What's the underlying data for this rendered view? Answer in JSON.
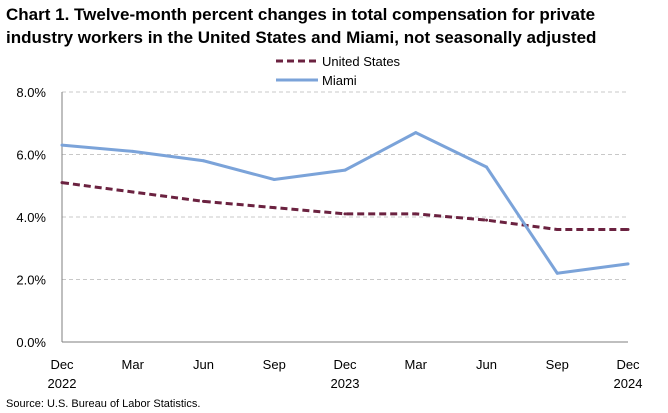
{
  "chart_data": {
    "type": "line",
    "title": "Chart 1. Twelve-month percent changes in total compensation for private industry workers in the United States and Miami, not seasonally adjusted",
    "source": "Source: U.S. Bureau of Labor Statistics.",
    "categories": [
      "Dec 2022",
      "Mar",
      "Jun",
      "Sep",
      "Dec 2023",
      "Mar",
      "Jun",
      "Sep",
      "Dec 2024"
    ],
    "tick_labels": [
      {
        "line1": "Dec",
        "line2": "2022"
      },
      {
        "line1": "Mar",
        "line2": ""
      },
      {
        "line1": "Jun",
        "line2": ""
      },
      {
        "line1": "Sep",
        "line2": ""
      },
      {
        "line1": "Dec",
        "line2": "2023"
      },
      {
        "line1": "Mar",
        "line2": ""
      },
      {
        "line1": "Jun",
        "line2": ""
      },
      {
        "line1": "Sep",
        "line2": ""
      },
      {
        "line1": "Dec",
        "line2": "2024"
      }
    ],
    "series": [
      {
        "name": "United States",
        "color": "#6b2240",
        "style": "dashed",
        "values": [
          5.1,
          4.8,
          4.5,
          4.3,
          4.1,
          4.1,
          3.9,
          3.6,
          3.6
        ]
      },
      {
        "name": "Miami",
        "color": "#7ba3d9",
        "style": "solid",
        "values": [
          6.3,
          6.1,
          5.8,
          5.2,
          5.5,
          6.7,
          5.6,
          2.2,
          2.5
        ]
      }
    ],
    "ylim": [
      0,
      8
    ],
    "yticks": [
      0,
      2,
      4,
      6,
      8
    ],
    "ytick_labels": [
      "0.0%",
      "2.0%",
      "4.0%",
      "6.0%",
      "8.0%"
    ],
    "grid": "horizontal dashed",
    "legend": "top-center",
    "xlabel": "",
    "ylabel": ""
  }
}
